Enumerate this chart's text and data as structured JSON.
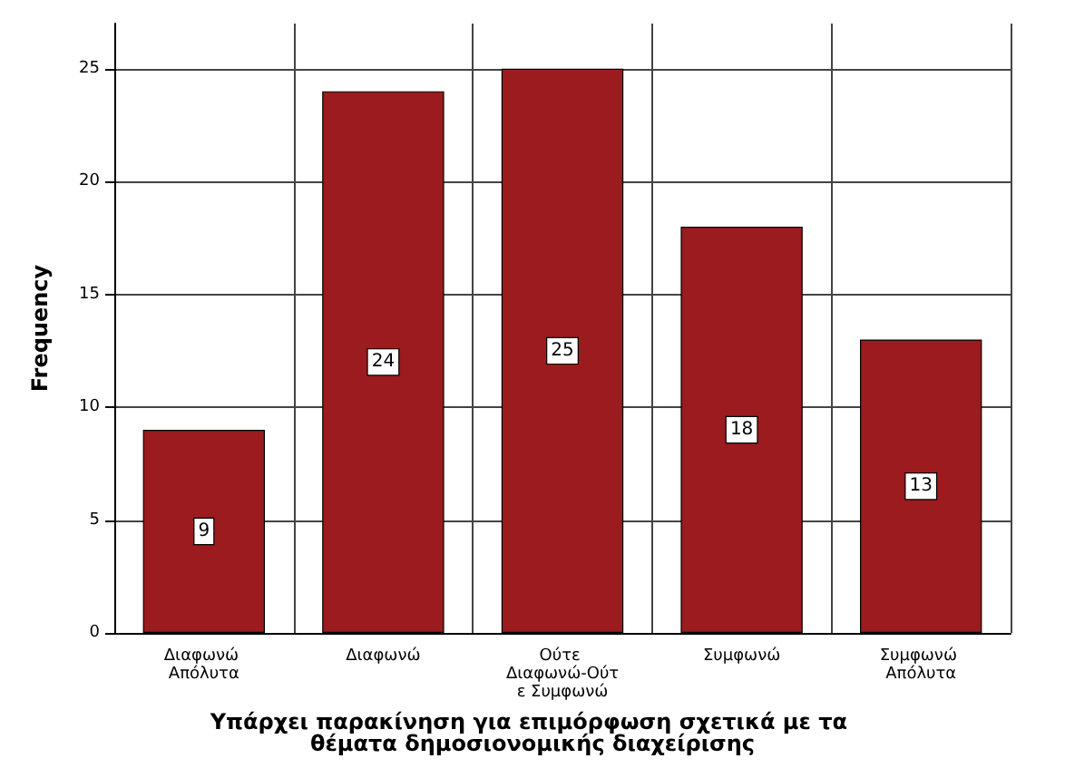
{
  "chart_data": {
    "type": "bar",
    "xlabel": "Υπάρχει παρακίνηση για επιμόρφωση σχετικά με τα θέματα δημοσιονομικής διαχείρισης",
    "ylabel": "Frequency",
    "categories": [
      "Διαφωνώ Απόλυτα",
      "Διαφωνώ",
      "Ούτε Διαφωνώ-Ούτε Συμφωνώ",
      "Συμφωνώ",
      "Συμφωνώ Απόλυτα"
    ],
    "values": [
      9,
      24,
      25,
      18,
      13
    ],
    "color": "#9b1b1e",
    "ylim": [
      0,
      27
    ],
    "yticks": [
      0,
      5,
      10,
      15,
      20,
      25
    ],
    "grid": true,
    "data_labels": true
  }
}
